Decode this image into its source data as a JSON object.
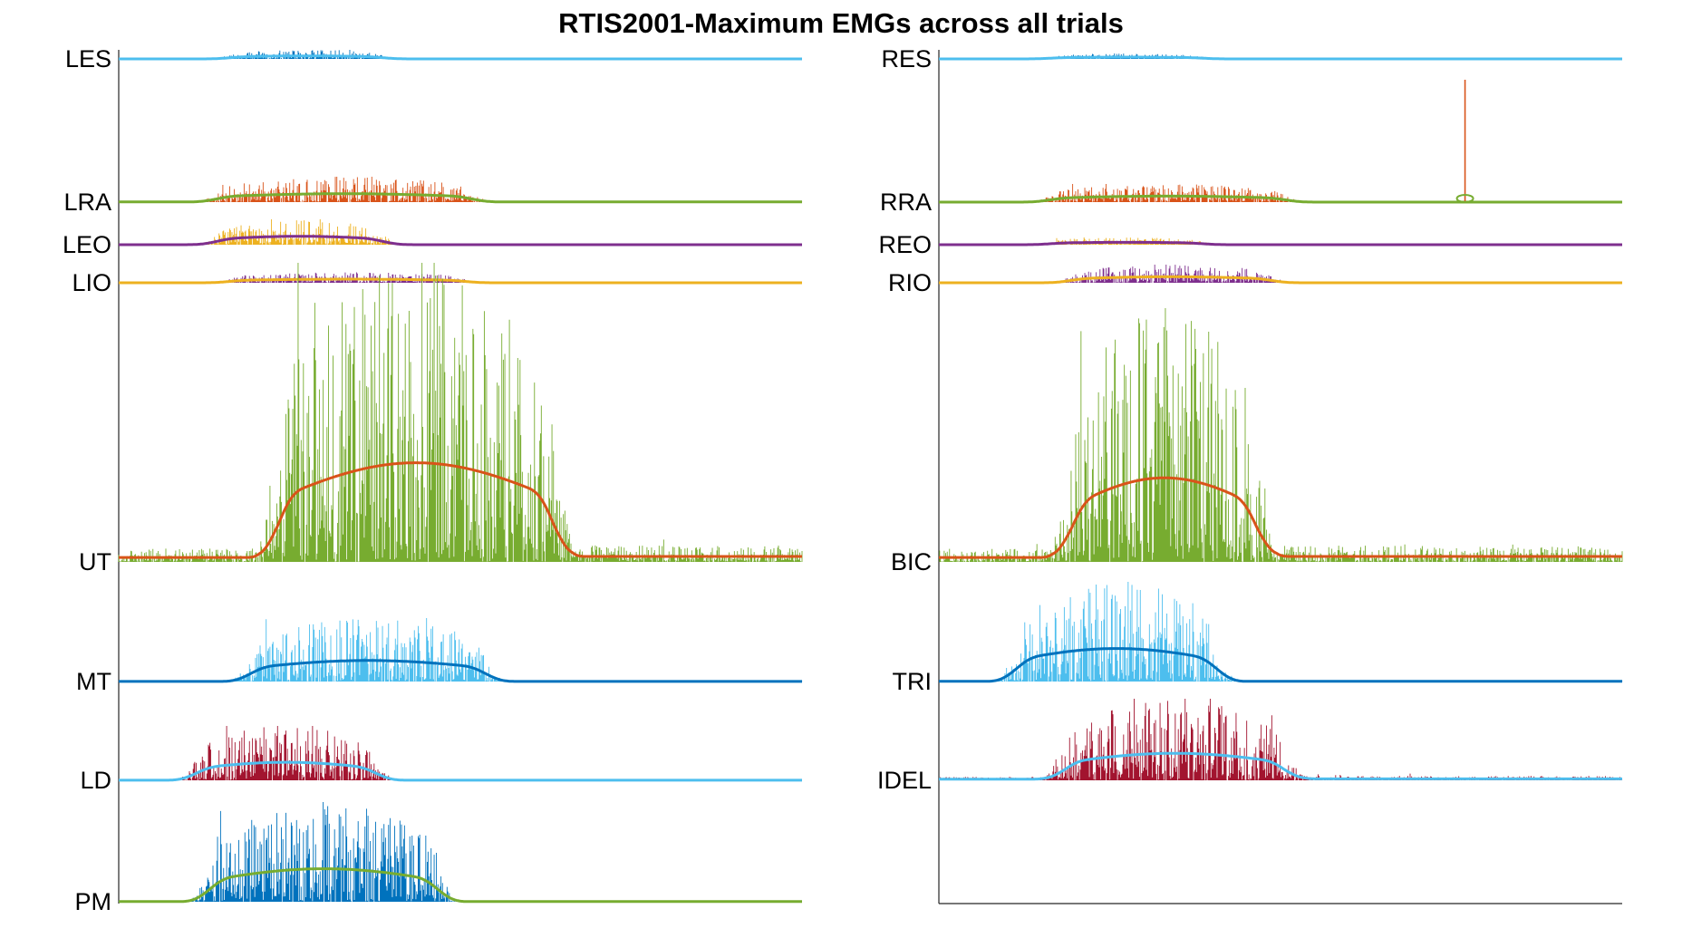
{
  "chart_data": {
    "type": "line",
    "title": "RTIS2001-Maximum EMGs across all trials",
    "panels": [
      {
        "name": "left",
        "channels": [
          {
            "label": "LES",
            "raw_color": "#0072BD",
            "env_color": "#4DBEEE",
            "amplitude": 0.07,
            "onset": 0.15,
            "offset": 0.4,
            "tail": 0.0,
            "scale": 1
          },
          {
            "label": "LRA",
            "raw_color": "#D95319",
            "env_color": "#77AC30",
            "amplitude": 0.1,
            "onset": 0.13,
            "offset": 0.53,
            "tail": 0.02,
            "scale": 1
          },
          {
            "label": "LEO",
            "raw_color": "#EDB120",
            "env_color": "#7E2F8E",
            "amplitude": 0.17,
            "onset": 0.13,
            "offset": 0.4,
            "tail": 0.0,
            "scale": 1
          },
          {
            "label": "LIO",
            "raw_color": "#7E2F8E",
            "env_color": "#EDB120",
            "amplitude": 0.05,
            "onset": 0.15,
            "offset": 0.52,
            "tail": 0.0,
            "scale": 1
          },
          {
            "label": "UT",
            "raw_color": "#77AC30",
            "env_color": "#D95319",
            "amplitude": 1.0,
            "onset": 0.22,
            "offset": 0.65,
            "tail": 0.05,
            "scale": 1
          },
          {
            "label": "MT",
            "raw_color": "#4DBEEE",
            "env_color": "#0072BD",
            "amplitude": 0.4,
            "onset": 0.18,
            "offset": 0.55,
            "tail": 0.0,
            "scale": 1
          },
          {
            "label": "LD",
            "raw_color": "#A2142F",
            "env_color": "#4DBEEE",
            "amplitude": 0.3,
            "onset": 0.1,
            "offset": 0.39,
            "tail": 0.0,
            "scale": 1
          },
          {
            "label": "PM",
            "raw_color": "#0072BD",
            "env_color": "#77AC30",
            "amplitude": 0.95,
            "onset": 0.12,
            "offset": 0.48,
            "tail": 0.0,
            "scale": 1
          }
        ]
      },
      {
        "name": "right",
        "channels": [
          {
            "label": "RES",
            "raw_color": "#0072BD",
            "env_color": "#4DBEEE",
            "amplitude": 0.03,
            "onset": 0.15,
            "offset": 0.4,
            "tail": 0.0,
            "scale": 1
          },
          {
            "label": "RRA",
            "raw_color": "#D95319",
            "env_color": "#77AC30",
            "amplitude": 0.1,
            "onset": 0.15,
            "offset": 0.52,
            "tail": 0.0,
            "scale": 1
          },
          {
            "label": "REO",
            "raw_color": "#EDB120",
            "env_color": "#7E2F8E",
            "amplitude": 0.03,
            "onset": 0.15,
            "offset": 0.4,
            "tail": 0.0,
            "scale": 1
          },
          {
            "label": "RIO",
            "raw_color": "#7E2F8E",
            "env_color": "#EDB120",
            "amplitude": 0.1,
            "onset": 0.18,
            "offset": 0.5,
            "tail": 0.0,
            "scale": 1
          },
          {
            "label": "BIC",
            "raw_color": "#77AC30",
            "env_color": "#D95319",
            "amplitude": 0.85,
            "onset": 0.18,
            "offset": 0.48,
            "tail": 0.06,
            "scale": 1
          },
          {
            "label": "TRI",
            "raw_color": "#4DBEEE",
            "env_color": "#0072BD",
            "amplitude": 0.55,
            "onset": 0.1,
            "offset": 0.42,
            "tail": 0.0,
            "scale": 1
          },
          {
            "label": "IDEL",
            "raw_color": "#A2142F",
            "env_color": "#4DBEEE",
            "amplitude": 0.7,
            "onset": 0.17,
            "offset": 0.52,
            "tail": 0.05,
            "scale": 1
          }
        ]
      }
    ],
    "annotations": [
      {
        "channel": "RRA",
        "type": "spike",
        "x": 0.77,
        "value": 1.0
      }
    ],
    "grid": false,
    "legend": "none"
  }
}
